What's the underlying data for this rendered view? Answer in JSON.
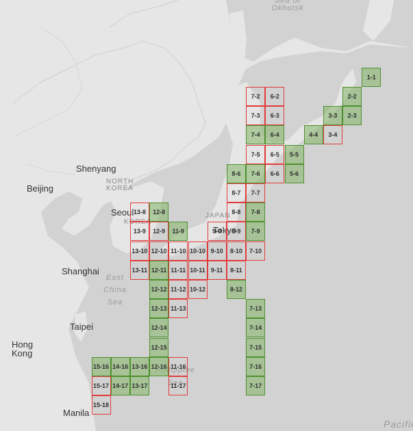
{
  "labels": {
    "cities": [
      "Beijing",
      "Shenyang",
      "Seoul",
      "Tokyo",
      "Shanghai",
      "Taipei",
      "Hong Kong",
      "Manila"
    ],
    "countries": [
      "NORTH KOREA",
      "KOREA",
      "JAPAN"
    ],
    "seas": [
      "Sea of Okhotsk",
      "East China Sea",
      "Philippine Sea"
    ],
    "ocean": "Pacific"
  },
  "colors": {
    "done_fill": "#82b464",
    "done_border": "#4d8f2e",
    "pending_border": "#e03b3b",
    "land": "#e6e6e6",
    "water": "#d2d2d2"
  },
  "tiles": [
    {
      "id": "1-1",
      "status": "done"
    },
    {
      "id": "2-2",
      "status": "done"
    },
    {
      "id": "2-3",
      "status": "done"
    },
    {
      "id": "3-3",
      "status": "done"
    },
    {
      "id": "3-4",
      "status": "pending"
    },
    {
      "id": "4-4",
      "status": "done"
    },
    {
      "id": "5-5",
      "status": "done"
    },
    {
      "id": "5-6",
      "status": "done"
    },
    {
      "id": "6-2",
      "status": "pending"
    },
    {
      "id": "6-3",
      "status": "pending"
    },
    {
      "id": "6-4",
      "status": "done"
    },
    {
      "id": "6-5",
      "status": "pending"
    },
    {
      "id": "6-6",
      "status": "pending"
    },
    {
      "id": "7-2",
      "status": "pending"
    },
    {
      "id": "7-3",
      "status": "pending"
    },
    {
      "id": "7-4",
      "status": "done"
    },
    {
      "id": "7-5",
      "status": "pending"
    },
    {
      "id": "7-6",
      "status": "done"
    },
    {
      "id": "7-7",
      "status": "pending"
    },
    {
      "id": "7-8",
      "status": "done"
    },
    {
      "id": "7-9",
      "status": "done"
    },
    {
      "id": "7-10",
      "status": "pending"
    },
    {
      "id": "7-13",
      "status": "done"
    },
    {
      "id": "7-14",
      "status": "done"
    },
    {
      "id": "7-15",
      "status": "done"
    },
    {
      "id": "7-16",
      "status": "done"
    },
    {
      "id": "7-17",
      "status": "done"
    },
    {
      "id": "8-6",
      "status": "done"
    },
    {
      "id": "8-7",
      "status": "pending"
    },
    {
      "id": "8-8",
      "status": "pending"
    },
    {
      "id": "8-9",
      "status": "pending"
    },
    {
      "id": "8-10",
      "status": "pending"
    },
    {
      "id": "8-11",
      "status": "pending"
    },
    {
      "id": "8-12",
      "status": "done"
    },
    {
      "id": "9-9",
      "status": "pending"
    },
    {
      "id": "9-10",
      "status": "pending"
    },
    {
      "id": "9-11",
      "status": "pending"
    },
    {
      "id": "10-10",
      "status": "pending"
    },
    {
      "id": "10-11",
      "status": "pending"
    },
    {
      "id": "10-12",
      "status": "pending"
    },
    {
      "id": "11-9",
      "status": "done"
    },
    {
      "id": "11-10",
      "status": "pending"
    },
    {
      "id": "11-11",
      "status": "pending"
    },
    {
      "id": "11-12",
      "status": "pending"
    },
    {
      "id": "11-13",
      "status": "pending"
    },
    {
      "id": "11-16",
      "status": "pending"
    },
    {
      "id": "11-17",
      "status": "pending"
    },
    {
      "id": "12-8",
      "status": "done"
    },
    {
      "id": "12-9",
      "status": "pending"
    },
    {
      "id": "12-10",
      "status": "pending"
    },
    {
      "id": "12-11",
      "status": "done"
    },
    {
      "id": "12-12",
      "status": "done"
    },
    {
      "id": "12-13",
      "status": "done"
    },
    {
      "id": "12-14",
      "status": "done"
    },
    {
      "id": "12-15",
      "status": "done"
    },
    {
      "id": "12-16",
      "status": "done"
    },
    {
      "id": "13-8",
      "status": "pending"
    },
    {
      "id": "13-9",
      "status": "pending"
    },
    {
      "id": "13-10",
      "status": "pending"
    },
    {
      "id": "13-11",
      "status": "pending"
    },
    {
      "id": "13-16",
      "status": "done"
    },
    {
      "id": "13-17",
      "status": "done"
    },
    {
      "id": "14-16",
      "status": "done"
    },
    {
      "id": "14-17",
      "status": "done"
    },
    {
      "id": "15-16",
      "status": "done"
    },
    {
      "id": "15-17",
      "status": "pending"
    },
    {
      "id": "15-18",
      "status": "pending"
    }
  ]
}
